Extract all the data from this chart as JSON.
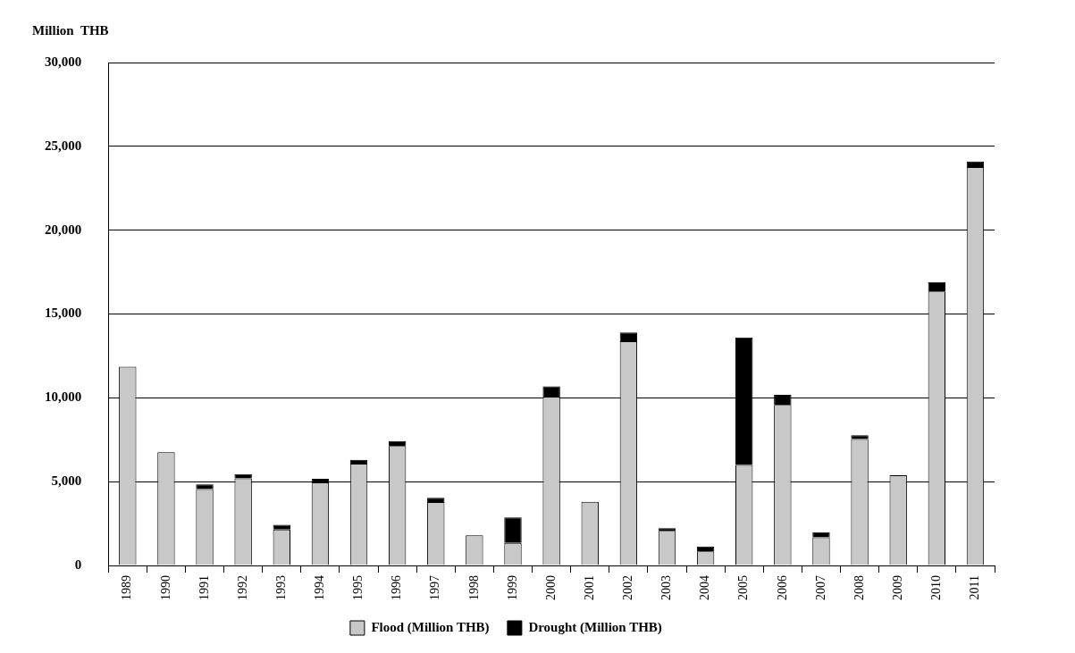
{
  "chart_data": {
    "type": "bar",
    "stacked": true,
    "ylabel": "Million  THB",
    "categories": [
      "1989",
      "1990",
      "1991",
      "1992",
      "1993",
      "1994",
      "1995",
      "1996",
      "1997",
      "1998",
      "1999",
      "2000",
      "2001",
      "2002",
      "2003",
      "2004",
      "2005",
      "2006",
      "2007",
      "2008",
      "2009",
      "2010",
      "2011"
    ],
    "series": [
      {
        "name": "Flood (Million THB)",
        "color": "#c8c8c8",
        "values": [
          11850,
          6750,
          4550,
          5200,
          2150,
          4950,
          6070,
          7130,
          3780,
          1800,
          1350,
          10070,
          3800,
          13380,
          2060,
          840,
          6000,
          9580,
          1680,
          7540,
          5380,
          16350,
          23760
        ]
      },
      {
        "name": "Drought (Million THB)",
        "color": "#000000",
        "values": [
          0,
          0,
          280,
          250,
          270,
          220,
          230,
          290,
          260,
          0,
          1520,
          620,
          0,
          510,
          170,
          290,
          7600,
          600,
          310,
          230,
          0,
          560,
          340
        ]
      }
    ],
    "ylim": [
      0,
      30000
    ],
    "yticks": [
      {
        "value": 0,
        "label": "0"
      },
      {
        "value": 5000,
        "label": "5,000"
      },
      {
        "value": 10000,
        "label": "10,000"
      },
      {
        "value": 15000,
        "label": "15,000"
      },
      {
        "value": 20000,
        "label": "20,000"
      },
      {
        "value": 25000,
        "label": "25,000"
      },
      {
        "value": 30000,
        "label": "30,000"
      }
    ],
    "grid": "y",
    "legend": "bottom"
  }
}
